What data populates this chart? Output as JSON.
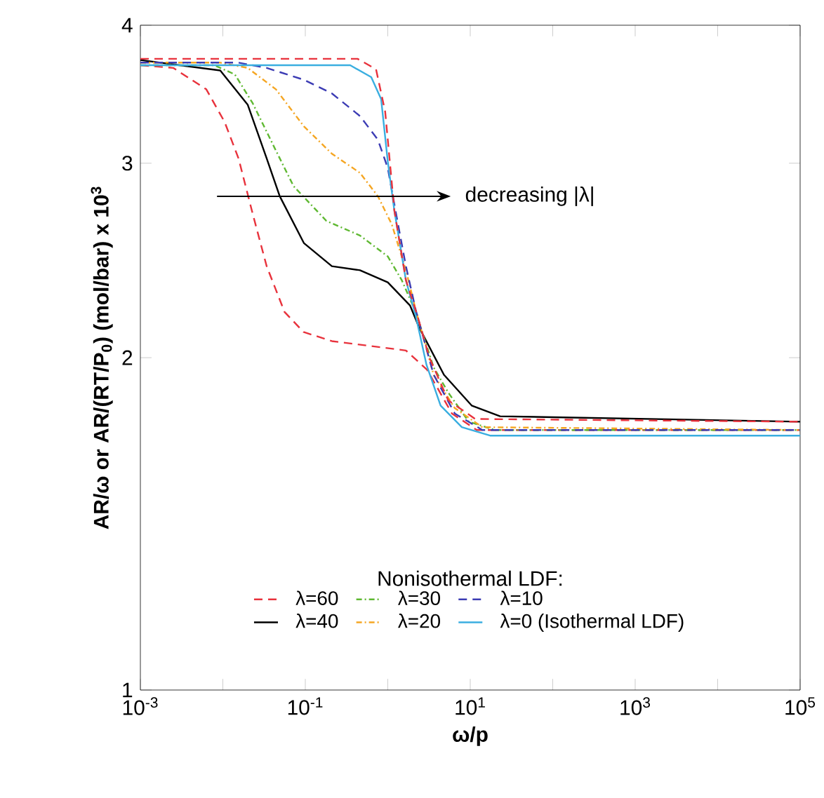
{
  "chart_data": {
    "type": "line",
    "xlabel": "ω/p",
    "ylabel": "AR/ω or AR/(RT/P$_{0}$) (mol/bar) x 10$^{3}$",
    "legend_title": "Nonisothermal LDF:",
    "annotations": [
      "decreasing |λ|"
    ],
    "log": "xy",
    "grid": false,
    "legend": "bottom",
    "xlim": [
      0.001,
      100000
    ],
    "ylim": [
      1,
      4
    ],
    "xticks": [
      {
        "value": 0.001,
        "label": "10$^{-3}$"
      },
      {
        "value": 0.01,
        "label": null
      },
      {
        "value": 0.1,
        "label": "10$^{-1}$"
      },
      {
        "value": 1,
        "label": null
      },
      {
        "value": 10,
        "label": "10$^{1}$"
      },
      {
        "value": 100,
        "label": null
      },
      {
        "value": 1000,
        "label": "10$^{3}$"
      },
      {
        "value": 10000,
        "label": null
      },
      {
        "value": 100000,
        "label": "10$^{5}$"
      }
    ],
    "yticks": [
      1,
      2,
      3,
      4
    ],
    "series": [
      {
        "name": "λ=60",
        "color": "#e8323c",
        "line_style": "dashed",
        "x": [
          0.001,
          0.0025,
          0.0063,
          0.0105,
          0.0155,
          0.023,
          0.034,
          0.056,
          0.095,
          0.21,
          1.66,
          3.0,
          6,
          12,
          100000
        ],
        "values": [
          3.68,
          3.66,
          3.5,
          3.27,
          3.03,
          2.7,
          2.42,
          2.2,
          2.11,
          2.07,
          2.03,
          1.95,
          1.78,
          1.72,
          1.72
        ]
      },
      {
        "name": "λ=40",
        "color": "#000000",
        "line_style": "solid",
        "x": [
          0.001,
          0.0093,
          0.02,
          0.034,
          0.049,
          0.096,
          0.21,
          0.46,
          1,
          1.86,
          2.4,
          4.8,
          10.4,
          23,
          100000
        ],
        "values": [
          3.72,
          3.64,
          3.39,
          3.03,
          2.8,
          2.54,
          2.42,
          2.4,
          2.34,
          2.23,
          2.13,
          1.93,
          1.81,
          1.77,
          1.75
        ]
      },
      {
        "name": "λ=30",
        "color": "#5fb832",
        "line_style": "dotted",
        "x": [
          0.001,
          0.0079,
          0.014,
          0.023,
          0.044,
          0.072,
          0.18,
          0.46,
          1,
          1.48,
          2.18,
          3.6,
          5.4,
          9.6,
          20,
          100000
        ],
        "values": [
          3.68,
          3.68,
          3.61,
          3.4,
          3.08,
          2.86,
          2.66,
          2.58,
          2.47,
          2.35,
          2.2,
          1.96,
          1.86,
          1.75,
          1.72,
          1.72
        ]
      },
      {
        "name": "λ=20",
        "color": "#f5a623",
        "line_style": "dotted",
        "x": [
          0.001,
          0.0093,
          0.02,
          0.044,
          0.096,
          0.21,
          0.46,
          0.76,
          1.12,
          1.66,
          2.18,
          3.6,
          6.5,
          14,
          100000
        ],
        "values": [
          3.7,
          3.7,
          3.66,
          3.5,
          3.24,
          3.06,
          2.94,
          2.8,
          2.64,
          2.4,
          2.21,
          1.93,
          1.8,
          1.73,
          1.72
        ]
      },
      {
        "name": "λ=10",
        "color": "#3c3cb4",
        "line_style": "dashed",
        "x": [
          0.001,
          0.0155,
          0.034,
          0.096,
          0.21,
          0.46,
          0.76,
          1,
          1.26,
          1.66,
          2.18,
          3.6,
          6.5,
          14,
          100000
        ],
        "values": [
          3.7,
          3.7,
          3.66,
          3.57,
          3.47,
          3.31,
          3.15,
          2.97,
          2.7,
          2.42,
          2.21,
          1.93,
          1.78,
          1.72,
          1.72
        ]
      },
      {
        "name": "λ=0 (Isothermal LDF)",
        "color": "#3aaee0",
        "line_style": "solid",
        "x": [
          0.001,
          0.35,
          0.63,
          0.83,
          1,
          1.2,
          1.66,
          2.19,
          2.95,
          4.37,
          7.9,
          17.4,
          100000
        ],
        "values": [
          3.68,
          3.68,
          3.59,
          3.43,
          3.01,
          2.72,
          2.35,
          2.18,
          1.97,
          1.81,
          1.73,
          1.7,
          1.7
        ]
      },
      {
        "color": "#e8323c",
        "line_style": "dashed",
        "x": [
          0.001,
          0.43,
          0.72,
          0.93,
          1.2,
          1.66,
          2.3,
          3.2,
          5.4,
          11.5,
          100000
        ],
        "values": [
          3.73,
          3.73,
          3.65,
          3.34,
          2.72,
          2.35,
          2.18,
          2.0,
          1.83,
          1.76,
          1.75
        ]
      }
    ]
  }
}
